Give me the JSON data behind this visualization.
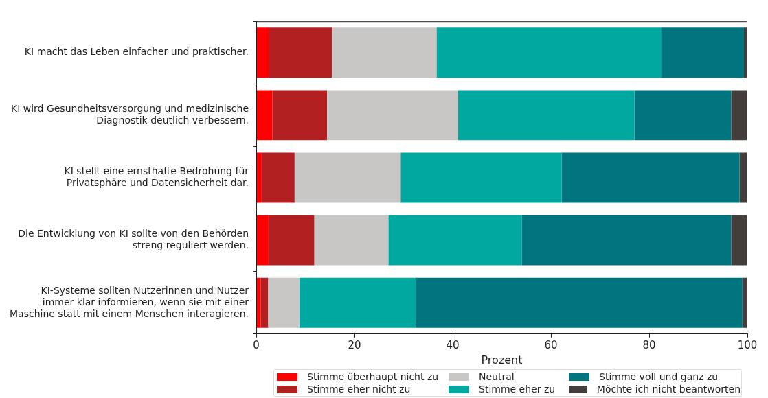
{
  "chart_data": {
    "type": "bar",
    "orientation": "horizontal",
    "stacked": true,
    "categories": [
      "KI macht das Leben einfacher und praktischer.",
      "KI wird Gesundheitsversorgung und medizinische Diagnostik deutlich verbessern.",
      "KI stellt eine ernsthafte Bedrohung für Privatsphäre und Datensicherheit dar.",
      "Die Entwicklung von KI sollte von den Behörden streng reguliert werden.",
      "KI-Systeme sollten Nutzerinnen und Nutzer immer klar informieren, wenn sie mit einer Maschine statt mit einem Menschen interagieren."
    ],
    "series": [
      {
        "name": "Stimme überhaupt nicht zu",
        "color": "#ff0000",
        "values": [
          2.6,
          3.3,
          1.1,
          2.5,
          0.9
        ]
      },
      {
        "name": "Stimme eher nicht zu",
        "color": "#b22022",
        "values": [
          12.8,
          11.1,
          6.7,
          9.3,
          1.5
        ]
      },
      {
        "name": "Neutral",
        "color": "#c8c7c5",
        "values": [
          21.3,
          26.7,
          21.6,
          15.1,
          6.4
        ]
      },
      {
        "name": "Stimme eher zu",
        "color": "#00a8a0",
        "values": [
          45.7,
          35.9,
          32.8,
          27.2,
          23.7
        ]
      },
      {
        "name": "Stimme voll und ganz zu",
        "color": "#00747f",
        "values": [
          16.9,
          19.7,
          36.2,
          42.6,
          66.5
        ]
      },
      {
        "name": "Möchte ich nicht beantworten",
        "color": "#433e3b",
        "values": [
          0.7,
          3.3,
          1.6,
          3.3,
          1.0
        ]
      }
    ],
    "xlabel": "Prozent",
    "xlim": [
      0,
      100
    ],
    "xticks": [
      0,
      20,
      40,
      60,
      80,
      100
    ],
    "grid": false,
    "legend": "bottom"
  }
}
